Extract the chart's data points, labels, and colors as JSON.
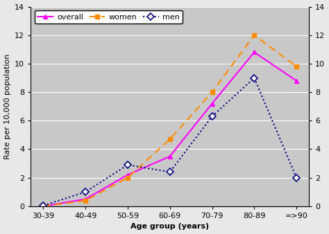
{
  "categories": [
    "30-39",
    "40-49",
    "50-59",
    "60-69",
    "70-79",
    "80-89",
    "=>90"
  ],
  "overall": [
    0.0,
    0.5,
    2.2,
    3.5,
    7.2,
    10.8,
    8.8
  ],
  "women": [
    0.0,
    0.4,
    2.0,
    4.7,
    8.0,
    12.0,
    9.8
  ],
  "men": [
    0.05,
    1.0,
    2.9,
    2.4,
    6.3,
    9.0,
    2.0
  ],
  "overall_color": "#ff00ff",
  "women_color": "#ff8c00",
  "men_color": "#000080",
  "ylabel_left": "Rate per 10,000 population",
  "xlabel": "Age group (years)",
  "ylim": [
    0,
    14
  ],
  "yticks": [
    0,
    2,
    4,
    6,
    8,
    10,
    12,
    14
  ],
  "background_color": "#c8c8c8",
  "plot_bg_color": "#c8c8c8",
  "outer_bg_color": "#e8e8e8",
  "grid_color": "#ffffff",
  "axis_fontsize": 8,
  "legend_fontsize": 8
}
